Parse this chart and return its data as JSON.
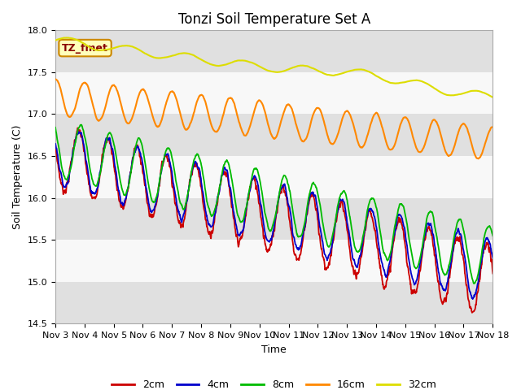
{
  "title": "Tonzi Soil Temperature Set A",
  "xlabel": "Time",
  "ylabel": "Soil Temperature (C)",
  "ylim": [
    14.5,
    18.0
  ],
  "x_tick_labels": [
    "Nov 3",
    "Nov 4",
    "Nov 5",
    "Nov 6",
    "Nov 7",
    "Nov 8",
    "Nov 9",
    "Nov 10",
    "Nov 11",
    "Nov 12",
    "Nov 13",
    "Nov 14",
    "Nov 15",
    "Nov 16",
    "Nov 17",
    "Nov 18"
  ],
  "legend_labels": [
    "2cm",
    "4cm",
    "8cm",
    "16cm",
    "32cm"
  ],
  "line_colors": [
    "#cc0000",
    "#0000cc",
    "#00bb00",
    "#ff8800",
    "#dddd00"
  ],
  "annotation_label": "TZ_fmet",
  "annotation_color": "#880000",
  "annotation_bg": "#ffffbb",
  "annotation_border": "#cc8800",
  "bg_band_color": "#e0e0e0",
  "bg_white_color": "#f8f8f8",
  "title_fontsize": 12,
  "axis_label_fontsize": 9,
  "tick_fontsize": 8,
  "legend_fontsize": 9
}
